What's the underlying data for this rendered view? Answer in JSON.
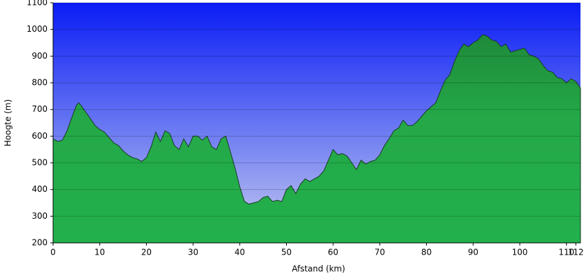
{
  "chart_data": {
    "type": "area",
    "x_label": "Afstand (km)",
    "y_label": "Hoogte (m)",
    "x": [
      0,
      1,
      2,
      3,
      4,
      5,
      5.5,
      6,
      7,
      8,
      9,
      10,
      11,
      12,
      13,
      14,
      15,
      16,
      17,
      18,
      19,
      20,
      21,
      22,
      23,
      24,
      25,
      26,
      27,
      28,
      29,
      30,
      31,
      32,
      33,
      34,
      35,
      36,
      37,
      38,
      39,
      40,
      41,
      42,
      43,
      44,
      45,
      46,
      47,
      48,
      49,
      50,
      51,
      52,
      53,
      54,
      55,
      56,
      57,
      58,
      59,
      60,
      61,
      62,
      63,
      64,
      65,
      66,
      67,
      68,
      69,
      70,
      71,
      72,
      73,
      74,
      75,
      76,
      77,
      78,
      79,
      80,
      81,
      82,
      83,
      84,
      85,
      86,
      87,
      88,
      89,
      90,
      91,
      92,
      93,
      94,
      95,
      96,
      97,
      98,
      99,
      100,
      101,
      102,
      103,
      104,
      105,
      106,
      107,
      108,
      109,
      110,
      111,
      112,
      113
    ],
    "values": [
      590,
      580,
      585,
      620,
      670,
      715,
      725,
      715,
      690,
      665,
      640,
      625,
      615,
      595,
      575,
      565,
      545,
      530,
      520,
      515,
      505,
      520,
      560,
      615,
      580,
      620,
      610,
      565,
      550,
      590,
      560,
      600,
      600,
      585,
      600,
      560,
      550,
      590,
      600,
      540,
      480,
      410,
      355,
      345,
      350,
      355,
      370,
      375,
      355,
      360,
      355,
      400,
      415,
      385,
      420,
      440,
      430,
      440,
      450,
      470,
      510,
      550,
      530,
      535,
      525,
      500,
      475,
      510,
      495,
      505,
      510,
      530,
      565,
      590,
      620,
      630,
      660,
      640,
      640,
      655,
      675,
      695,
      710,
      725,
      770,
      810,
      830,
      880,
      920,
      945,
      935,
      950,
      960,
      980,
      975,
      960,
      955,
      935,
      945,
      915,
      920,
      925,
      930,
      905,
      900,
      890,
      865,
      845,
      840,
      820,
      815,
      800,
      815,
      805,
      780
    ],
    "color": "#22a84a",
    "xlim": [
      0,
      113
    ],
    "ylim": [
      200,
      1100
    ],
    "xticks": [
      0,
      10,
      20,
      30,
      40,
      50,
      60,
      70,
      80,
      90,
      100,
      110,
      112
    ],
    "yticks": [
      200,
      300,
      400,
      500,
      600,
      700,
      800,
      900,
      1000,
      1100
    ],
    "grid": true
  }
}
